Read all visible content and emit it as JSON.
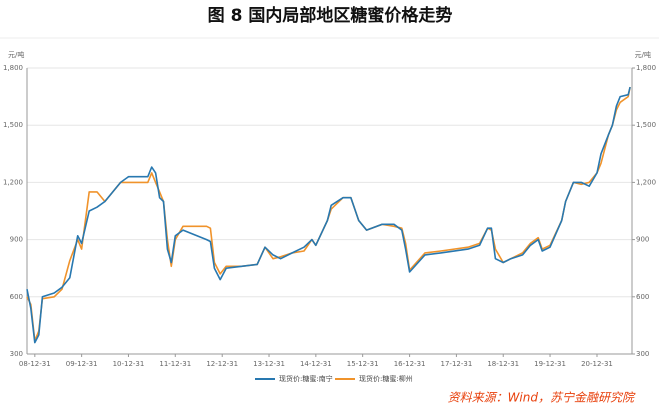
{
  "chart_data": {
    "type": "line",
    "title": "图 8  国内局部地区糖蜜价格走势",
    "y_unit": "元/吨",
    "y2_unit": "元/吨",
    "source": "资料来源：Wind，苏宁金融研究院",
    "x": [
      "08-10-31",
      "08-11-30",
      "08-12-31",
      "09-01-31",
      "09-02-28",
      "09-05-31",
      "09-07-31",
      "09-09-30",
      "09-11-30",
      "09-12-31",
      "10-02-28",
      "10-04-30",
      "10-06-30",
      "10-08-31",
      "10-10-31",
      "10-12-31",
      "11-05-31",
      "11-06-30",
      "11-07-31",
      "11-08-31",
      "11-09-30",
      "11-10-31",
      "11-11-30",
      "11-12-31",
      "12-02-29",
      "12-08-31",
      "12-09-30",
      "12-10-31",
      "12-12-15",
      "13-01-31",
      "13-05-31",
      "13-09-30",
      "13-11-30",
      "14-01-31",
      "14-03-31",
      "14-06-30",
      "14-09-30",
      "14-11-30",
      "14-12-31",
      "15-03-31",
      "15-04-30",
      "15-07-31",
      "15-09-30",
      "15-11-30",
      "16-01-31",
      "16-05-31",
      "16-08-31",
      "16-10-31",
      "16-11-30",
      "16-12-31",
      "17-04-30",
      "17-08-31",
      "18-03-31",
      "18-06-30",
      "18-08-31",
      "18-09-30",
      "18-10-31",
      "18-12-31",
      "19-02-28",
      "19-05-31",
      "19-07-31",
      "19-09-30",
      "19-10-31",
      "19-12-31",
      "20-03-31",
      "20-04-30",
      "20-06-30",
      "20-08-31",
      "20-10-31",
      "20-12-31",
      "21-01-31",
      "21-03-31",
      "21-04-30",
      "21-05-31",
      "21-06-30",
      "21-08-31",
      "21-09-15"
    ],
    "series": [
      {
        "name": "现货价:糖蜜:南宁",
        "color": "#2878b0",
        "values": [
          640,
          540,
          360,
          400,
          600,
          620,
          650,
          700,
          920,
          880,
          1050,
          1070,
          1100,
          1150,
          1200,
          1230,
          1230,
          1280,
          1250,
          1120,
          1100,
          850,
          780,
          920,
          950,
          900,
          890,
          750,
          690,
          750,
          760,
          770,
          860,
          820,
          800,
          830,
          860,
          900,
          870,
          1000,
          1080,
          1120,
          1120,
          1000,
          950,
          980,
          980,
          950,
          850,
          730,
          820,
          830,
          850,
          870,
          960,
          960,
          800,
          780,
          800,
          820,
          870,
          900,
          840,
          860,
          1000,
          1100,
          1200,
          1200,
          1180,
          1250,
          1350,
          1450,
          1500,
          1600,
          1650,
          1660,
          1700
        ]
      },
      {
        "name": "现货价:糖蜜:柳州",
        "color": "#f0932b",
        "values": [
          600,
          560,
          370,
          420,
          590,
          600,
          640,
          790,
          900,
          850,
          1150,
          1150,
          1100,
          1150,
          1200,
          1200,
          1200,
          1250,
          1200,
          1150,
          1100,
          900,
          760,
          900,
          970,
          970,
          960,
          780,
          720,
          760,
          760,
          770,
          860,
          800,
          810,
          830,
          840,
          900,
          870,
          1000,
          1060,
          1120,
          1120,
          1000,
          950,
          980,
          970,
          960,
          880,
          740,
          830,
          840,
          860,
          880,
          960,
          950,
          850,
          780,
          800,
          830,
          880,
          910,
          850,
          870,
          1000,
          1100,
          1200,
          1190,
          1200,
          1250,
          1300,
          1450,
          1500,
          1580,
          1620,
          1650,
          1700
        ]
      }
    ],
    "xlim": [
      "08-10-31",
      "21-09-30"
    ],
    "xticks": [
      "08-12-31",
      "09-12-31",
      "10-12-31",
      "11-12-31",
      "12-12-31",
      "13-12-31",
      "14-12-31",
      "15-12-31",
      "16-12-31",
      "17-12-31",
      "18-12-31",
      "19-12-31",
      "20-12-31"
    ],
    "ylim": [
      300,
      1800
    ],
    "yticks": [
      300,
      600,
      900,
      {
        "value": 1200,
        "label": "1,200"
      },
      {
        "value": 1500,
        "label": "1,500"
      },
      {
        "value": 1800,
        "label": "1,800"
      }
    ],
    "y2lim": [
      300,
      1800
    ],
    "y2ticks": [
      300,
      600,
      900,
      {
        "value": 1200,
        "label": "1,200"
      },
      {
        "value": 1500,
        "label": "1,500"
      },
      {
        "value": 1800,
        "label": "1,800"
      }
    ],
    "grid": true
  }
}
